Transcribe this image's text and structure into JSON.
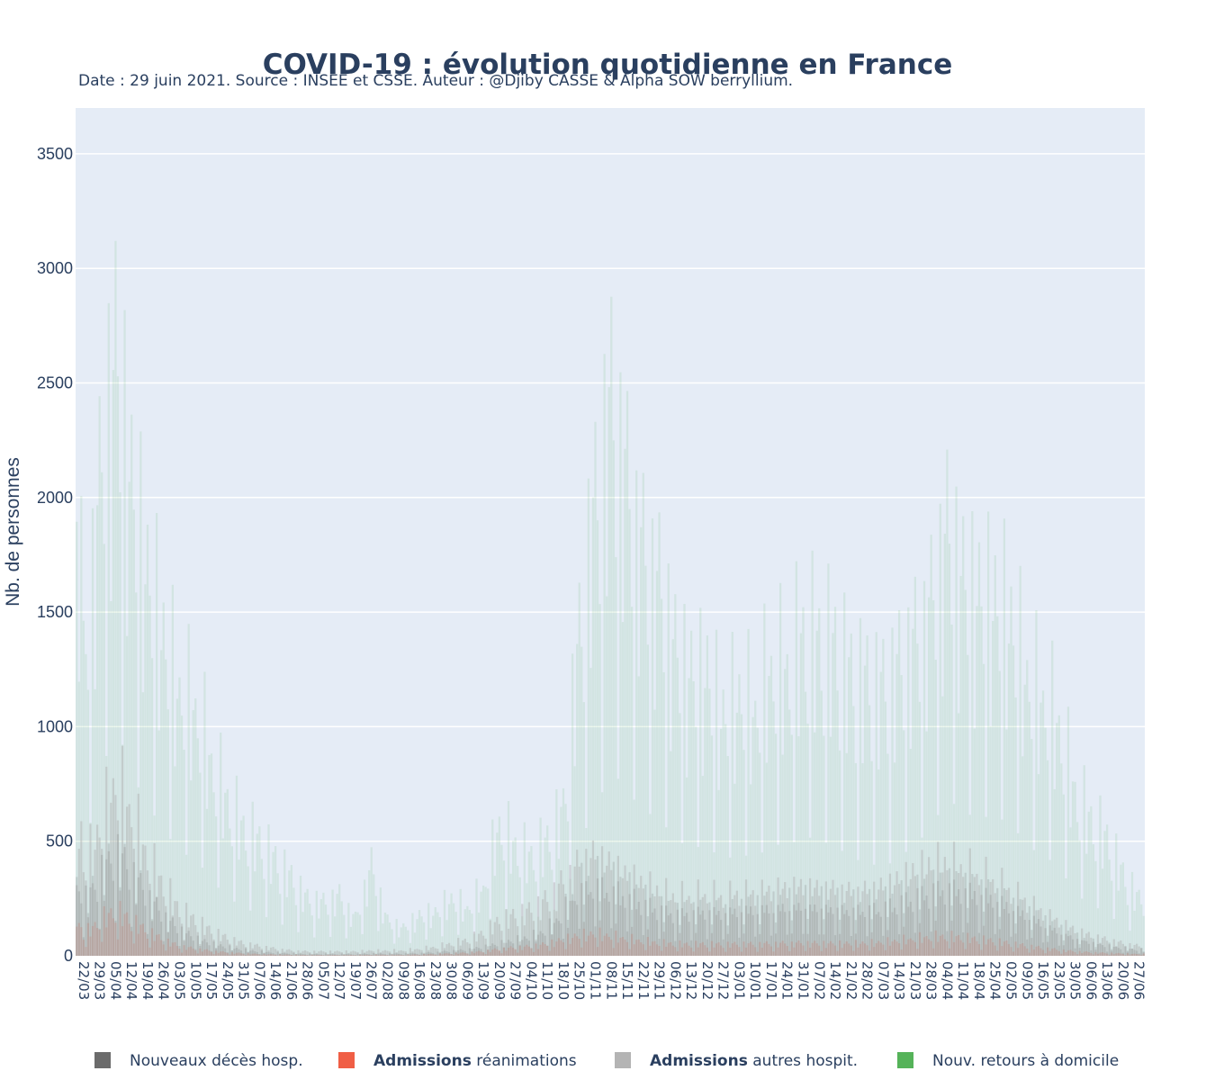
{
  "title": "COVID-19 : évolution quotidienne en France",
  "subtitle": "Date : 29 juin 2021. Source : INSEE et CSSE. Auteur : @Djiby CASSE & Alpha SOW berryllium.",
  "colors": {
    "plot_bg": "#e5ecf6",
    "grid": "#ffffff",
    "text": "#2a3f5f",
    "deces": "#636363",
    "reanimations": "#ef553b",
    "autres_hospit": "#b0b0b0",
    "retours_domicile": "#4caf50"
  },
  "chart_data": {
    "type": "bar",
    "barmode": "overlay",
    "title": "COVID-19 : évolution quotidienne en France",
    "ylabel": "Nb. de personnes",
    "xlabel": "",
    "ylim": [
      0,
      3700
    ],
    "yticks": [
      0,
      500,
      1000,
      1500,
      2000,
      2500,
      3000,
      3500
    ],
    "grid": true,
    "legend_position": "bottom",
    "start_date": "2020-03-19",
    "end_date": "2021-06-29",
    "xtick_labels": [
      "22/03",
      "29/03",
      "05/04",
      "12/04",
      "19/04",
      "26/04",
      "03/05",
      "10/05",
      "17/05",
      "24/05",
      "31/05",
      "07/06",
      "14/06",
      "21/06",
      "28/06",
      "05/07",
      "12/07",
      "19/07",
      "26/07",
      "02/08",
      "09/08",
      "16/08",
      "23/08",
      "30/08",
      "06/09",
      "13/09",
      "20/09",
      "27/09",
      "04/10",
      "11/10",
      "18/10",
      "25/10",
      "01/11",
      "08/11",
      "15/11",
      "22/11",
      "29/11",
      "06/12",
      "13/12",
      "20/12",
      "27/12",
      "03/01",
      "10/01",
      "17/01",
      "24/01",
      "31/01",
      "07/02",
      "14/02",
      "21/02",
      "28/02",
      "07/03",
      "14/03",
      "21/03",
      "28/03",
      "04/04",
      "11/04",
      "18/04",
      "25/04",
      "02/05",
      "09/05",
      "16/05",
      "23/05",
      "30/05",
      "06/06",
      "13/06",
      "20/06",
      "27/06"
    ],
    "legend": [
      {
        "bold": "",
        "text": "Nouveaux décès hosp.",
        "color": "#636363"
      },
      {
        "bold": "Admissions",
        "text": " réanimations",
        "color": "#ef553b"
      },
      {
        "bold": "Admissions",
        "text": " autres hospit.",
        "color": "#b0b0b0"
      },
      {
        "bold": "",
        "text": "Nouv. retours à domicile",
        "color": "#4caf50"
      }
    ],
    "series_envelope": [
      {
        "name": "Nouv. retours à domicile",
        "weekly_peak": [
          1600,
          2700,
          3500,
          2700,
          2200,
          1850,
          1500,
          1430,
          1100,
          880,
          720,
          650,
          540,
          440,
          320,
          300,
          340,
          210,
          520,
          200,
          160,
          230,
          250,
          330,
          270,
          390,
          750,
          620,
          560,
          650,
          820,
          1800,
          2550,
          3130,
          2680,
          2300,
          2130,
          1760,
          1610,
          1620,
          1380,
          1500,
          1400,
          1650,
          1610,
          1810,
          1760,
          1730,
          1570,
          1540,
          1510,
          1640,
          1800,
          2010,
          2440,
          2150,
          2060,
          2040,
          1930,
          1590,
          1470,
          1310,
          920,
          770,
          660,
          460,
          320
        ]
      },
      {
        "name": "Admissions autres hospit.",
        "weekly_peak": [
          500,
          720,
          1000,
          820,
          560,
          400,
          260,
          200,
          140,
          100,
          70,
          55,
          40,
          30,
          25,
          25,
          25,
          25,
          30,
          30,
          30,
          40,
          50,
          70,
          90,
          130,
          200,
          230,
          260,
          320,
          420,
          520,
          560,
          500,
          440,
          400,
          360,
          330,
          330,
          340,
          320,
          340,
          330,
          350,
          360,
          370,
          360,
          360,
          350,
          360,
          380,
          420,
          470,
          510,
          520,
          490,
          450,
          410,
          350,
          290,
          230,
          180,
          140,
          110,
          90,
          70,
          55
        ]
      },
      {
        "name": "Admissions réanimations",
        "weekly_peak": [
          120,
          200,
          260,
          200,
          140,
          90,
          55,
          40,
          28,
          20,
          14,
          10,
          8,
          6,
          5,
          5,
          5,
          5,
          6,
          6,
          6,
          8,
          10,
          14,
          18,
          26,
          40,
          48,
          55,
          70,
          95,
          120,
          130,
          115,
          100,
          85,
          75,
          68,
          66,
          68,
          64,
          68,
          66,
          70,
          72,
          74,
          72,
          72,
          72,
          74,
          80,
          90,
          100,
          110,
          112,
          104,
          94,
          84,
          70,
          56,
          44,
          34,
          26,
          20,
          16,
          13,
          10
        ]
      },
      {
        "name": "Nouveaux décès hosp.",
        "weekly_peak": [
          300,
          450,
          600,
          480,
          350,
          230,
          150,
          100,
          70,
          50,
          35,
          25,
          18,
          14,
          10,
          10,
          10,
          10,
          12,
          12,
          12,
          15,
          20,
          28,
          35,
          50,
          70,
          90,
          110,
          150,
          250,
          400,
          440,
          420,
          380,
          330,
          280,
          250,
          260,
          270,
          260,
          280,
          290,
          300,
          310,
          320,
          310,
          300,
          290,
          290,
          300,
          330,
          360,
          390,
          410,
          400,
          380,
          350,
          300,
          250,
          200,
          150,
          110,
          80,
          60,
          45,
          35
        ]
      }
    ]
  }
}
